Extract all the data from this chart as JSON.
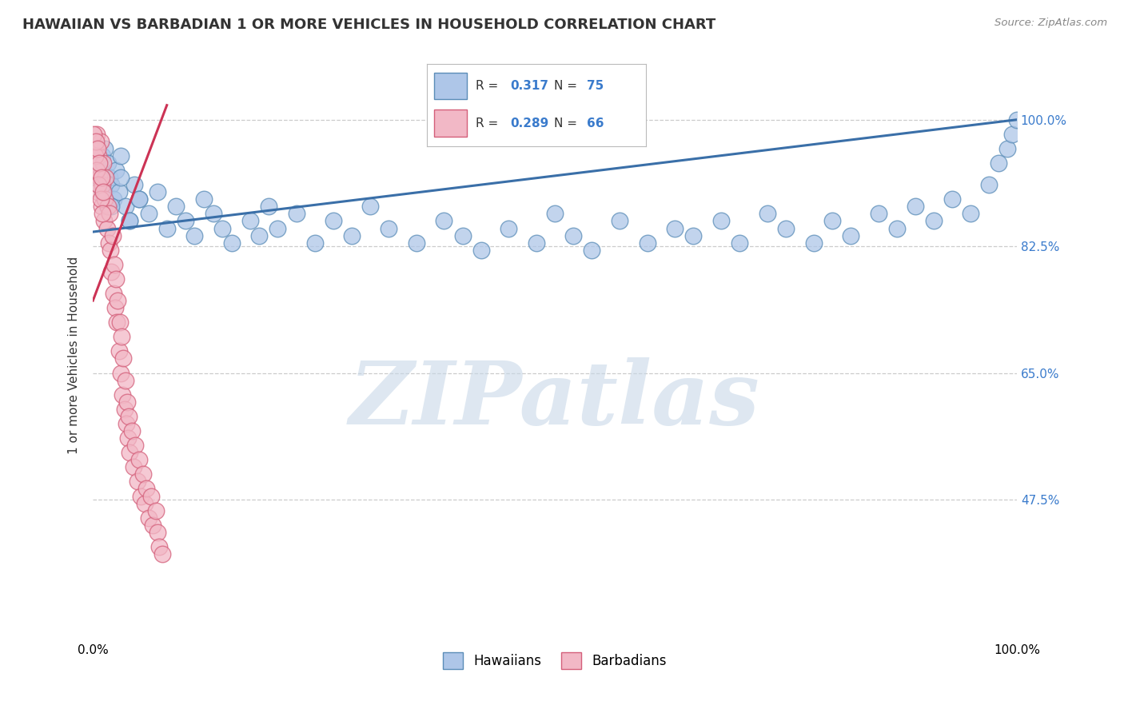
{
  "title": "HAWAIIAN VS BARBADIAN 1 OR MORE VEHICLES IN HOUSEHOLD CORRELATION CHART",
  "source": "Source: ZipAtlas.com",
  "ylabel": "1 or more Vehicles in Household",
  "xlim": [
    0.0,
    100.0
  ],
  "ylim": [
    28.0,
    107.0
  ],
  "ytick_labels": [
    "47.5%",
    "65.0%",
    "82.5%",
    "100.0%"
  ],
  "ytick_values": [
    47.5,
    65.0,
    82.5,
    100.0
  ],
  "hawaiian_color": "#aec6e8",
  "barbadian_color": "#f2b8c6",
  "hawaiian_edge": "#5b8db8",
  "barbadian_edge": "#d45f7a",
  "trend_hawaiian_color": "#3a6fa8",
  "trend_barbadian_color": "#cc3355",
  "R_hawaiian": 0.317,
  "N_hawaiian": 75,
  "R_barbadian": 0.289,
  "N_barbadian": 66,
  "watermark": "ZIPatlas",
  "watermark_color": "#c8d8e8",
  "background_color": "#ffffff",
  "grid_color": "#cccccc",
  "haw_x": [
    0.3,
    0.5,
    0.6,
    0.8,
    1.0,
    1.2,
    1.3,
    1.5,
    1.6,
    1.8,
    2.0,
    2.2,
    2.5,
    2.8,
    3.0,
    3.5,
    4.0,
    4.5,
    5.0,
    6.0,
    7.0,
    8.0,
    9.0,
    10.0,
    11.0,
    12.0,
    13.0,
    14.0,
    15.0,
    17.0,
    18.0,
    19.0,
    20.0,
    22.0,
    24.0,
    26.0,
    28.0,
    30.0,
    32.0,
    35.0,
    38.0,
    40.0,
    42.0,
    45.0,
    48.0,
    50.0,
    52.0,
    54.0,
    57.0,
    60.0,
    63.0,
    65.0,
    68.0,
    70.0,
    73.0,
    75.0,
    78.0,
    80.0,
    82.0,
    85.0,
    87.0,
    89.0,
    91.0,
    93.0,
    95.0,
    97.0,
    98.0,
    99.0,
    99.5,
    100.0,
    1.0,
    2.0,
    3.0,
    4.0,
    5.0
  ],
  "haw_y": [
    92.0,
    94.0,
    91.0,
    93.0,
    95.0,
    90.0,
    96.0,
    88.0,
    94.0,
    92.0,
    91.0,
    89.0,
    93.0,
    90.0,
    95.0,
    88.0,
    86.0,
    91.0,
    89.0,
    87.0,
    90.0,
    85.0,
    88.0,
    86.0,
    84.0,
    89.0,
    87.0,
    85.0,
    83.0,
    86.0,
    84.0,
    88.0,
    85.0,
    87.0,
    83.0,
    86.0,
    84.0,
    88.0,
    85.0,
    83.0,
    86.0,
    84.0,
    82.0,
    85.0,
    83.0,
    87.0,
    84.0,
    82.0,
    86.0,
    83.0,
    85.0,
    84.0,
    86.0,
    83.0,
    87.0,
    85.0,
    83.0,
    86.0,
    84.0,
    87.0,
    85.0,
    88.0,
    86.0,
    89.0,
    87.0,
    91.0,
    94.0,
    96.0,
    98.0,
    100.0,
    90.0,
    88.0,
    92.0,
    86.0,
    89.0
  ],
  "bar_x": [
    0.2,
    0.3,
    0.4,
    0.5,
    0.6,
    0.7,
    0.8,
    0.9,
    1.0,
    1.1,
    1.2,
    1.3,
    1.4,
    1.5,
    1.6,
    1.7,
    1.8,
    1.9,
    2.0,
    2.1,
    2.2,
    2.3,
    2.4,
    2.5,
    2.6,
    2.7,
    2.8,
    2.9,
    3.0,
    3.1,
    3.2,
    3.3,
    3.4,
    3.5,
    3.6,
    3.7,
    3.8,
    3.9,
    4.0,
    4.2,
    4.4,
    4.6,
    4.8,
    5.0,
    5.2,
    5.4,
    5.6,
    5.8,
    6.0,
    6.3,
    6.5,
    6.8,
    7.0,
    7.2,
    7.5,
    0.1,
    0.2,
    0.3,
    0.4,
    0.5,
    0.6,
    0.7,
    0.8,
    0.9,
    1.0,
    1.1
  ],
  "bar_y": [
    96.0,
    93.0,
    98.0,
    90.0,
    95.0,
    92.0,
    97.0,
    88.0,
    91.0,
    94.0,
    86.0,
    89.0,
    92.0,
    85.0,
    88.0,
    83.0,
    87.0,
    82.0,
    79.0,
    84.0,
    76.0,
    80.0,
    74.0,
    78.0,
    72.0,
    75.0,
    68.0,
    72.0,
    65.0,
    70.0,
    62.0,
    67.0,
    60.0,
    64.0,
    58.0,
    61.0,
    56.0,
    59.0,
    54.0,
    57.0,
    52.0,
    55.0,
    50.0,
    53.0,
    48.0,
    51.0,
    47.0,
    49.0,
    45.0,
    48.0,
    44.0,
    46.0,
    43.0,
    41.0,
    40.0,
    98.0,
    95.0,
    97.0,
    93.0,
    96.0,
    91.0,
    94.0,
    89.0,
    92.0,
    87.0,
    90.0
  ],
  "haw_trend_x0": 0.0,
  "haw_trend_y0": 84.5,
  "haw_trend_x1": 100.0,
  "haw_trend_y1": 100.0,
  "bar_trend_x0": 0.0,
  "bar_trend_y0": 75.0,
  "bar_trend_x1": 8.0,
  "bar_trend_y1": 102.0
}
